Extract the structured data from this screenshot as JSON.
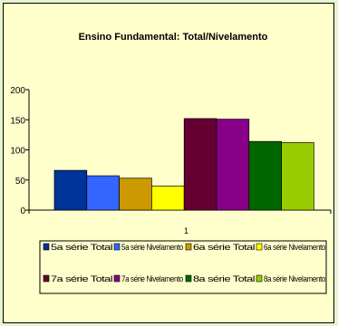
{
  "chart_data": {
    "type": "bar",
    "title": "Ensino Fundamental: Total/Nivelamento",
    "categories": [
      "1"
    ],
    "ylim": [
      0,
      200
    ],
    "yticks": [
      0,
      50,
      100,
      150,
      200
    ],
    "grid": false,
    "legend_position": "bottom",
    "series": [
      {
        "name": "5a série Total",
        "values": [
          66
        ],
        "color": "#003399"
      },
      {
        "name": "5a série Nivelamento",
        "values": [
          57
        ],
        "color": "#3366ff"
      },
      {
        "name": "6a série Total",
        "values": [
          53
        ],
        "color": "#cc9900"
      },
      {
        "name": "6a série Nivelamento",
        "values": [
          40
        ],
        "color": "#ffff00"
      },
      {
        "name": "7a série Total",
        "values": [
          152
        ],
        "color": "#660033"
      },
      {
        "name": "7a série Nivelamento",
        "values": [
          151
        ],
        "color": "#880088"
      },
      {
        "name": "8a série Total",
        "values": [
          114
        ],
        "color": "#006600"
      },
      {
        "name": "8a série Nivelamento",
        "values": [
          112
        ],
        "color": "#99cc00"
      }
    ]
  }
}
